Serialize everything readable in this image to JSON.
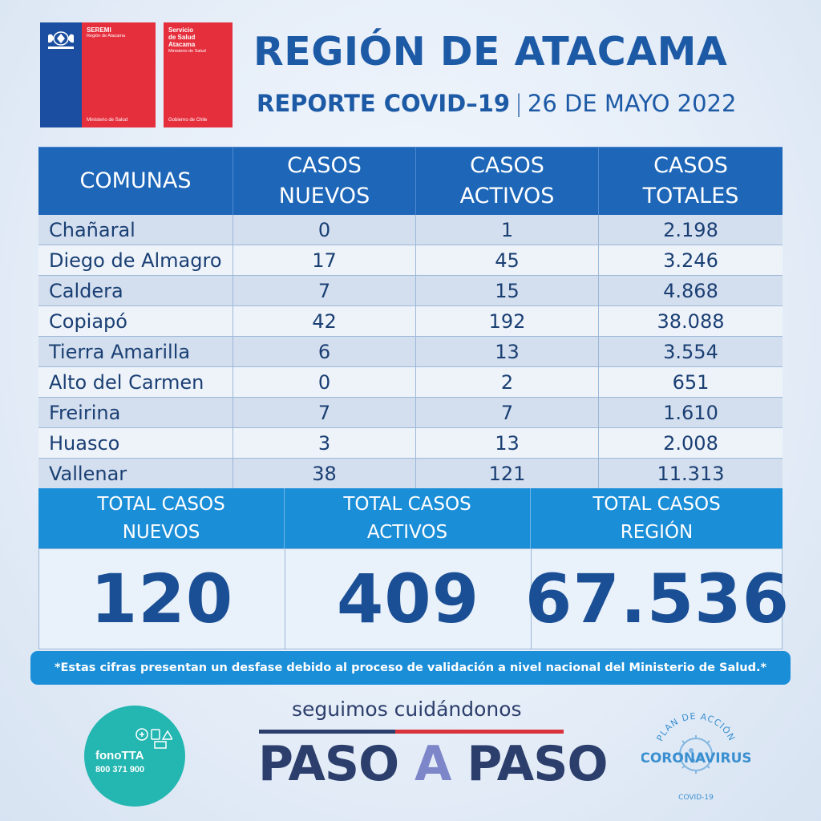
{
  "logos": {
    "seremi": {
      "title": "SEREMI",
      "region": "Región de Atacama",
      "ministry": "Ministerio de Salud"
    },
    "servicio": {
      "title_line1": "Servicio",
      "title_line2": "de Salud",
      "title_line3": "Atacama",
      "ministry": "Ministerio de Salud",
      "footer": "Gobierno de Chile"
    }
  },
  "header": {
    "title": "REGIÓN DE ATACAMA",
    "report": "REPORTE COVID–19",
    "separator": "|",
    "date": "26 DE MAYO 2022"
  },
  "table": {
    "headers": {
      "comunas": "COMUNAS",
      "nuevos_l1": "CASOS",
      "nuevos_l2": "NUEVOS",
      "activos_l1": "CASOS",
      "activos_l2": "ACTIVOS",
      "totales_l1": "CASOS",
      "totales_l2": "TOTALES"
    },
    "rows": [
      {
        "comuna": "Chañaral",
        "nuevos": "0",
        "activos": "1",
        "totales": "2.198"
      },
      {
        "comuna": "Diego de Almagro",
        "nuevos": "17",
        "activos": "45",
        "totales": "3.246"
      },
      {
        "comuna": "Caldera",
        "nuevos": "7",
        "activos": "15",
        "totales": "4.868"
      },
      {
        "comuna": "Copiapó",
        "nuevos": "42",
        "activos": "192",
        "totales": "38.088"
      },
      {
        "comuna": "Tierra Amarilla",
        "nuevos": "6",
        "activos": "13",
        "totales": "3.554"
      },
      {
        "comuna": "Alto del Carmen",
        "nuevos": "0",
        "activos": "2",
        "totales": "651"
      },
      {
        "comuna": "Freirina",
        "nuevos": "7",
        "activos": "7",
        "totales": "1.610"
      },
      {
        "comuna": "Huasco",
        "nuevos": "3",
        "activos": "13",
        "totales": "2.008"
      },
      {
        "comuna": "Vallenar",
        "nuevos": "38",
        "activos": "121",
        "totales": "11.313"
      }
    ]
  },
  "totals": {
    "nuevos_label_l1": "TOTAL CASOS",
    "nuevos_label_l2": "NUEVOS",
    "nuevos_value": "120",
    "activos_label_l1": "TOTAL CASOS",
    "activos_label_l2": "ACTIVOS",
    "activos_value": "409",
    "region_label_l1": "TOTAL CASOS",
    "region_label_l2": "REGIÓN",
    "region_value": "67.536"
  },
  "disclaimer": "*Estas cifras presentan un desfase debido al proceso de validación a nivel nacional del Ministerio de Salud.*",
  "footer": {
    "fono_name": "fonoTTA",
    "fono_number": "800 371 900",
    "slogan": "seguimos cuidándonos",
    "paso1": "PASO",
    "paso_a": "A",
    "paso2": "PASO",
    "plan_top": "PLAN DE ACCIÓN",
    "plan_main": "CORONAVIRUS",
    "plan_sub": "COVID-19"
  },
  "colors": {
    "primary_blue": "#1d5aa6",
    "header_blue": "#1d66b8",
    "light_blue": "#1b8ed8",
    "red": "#e52f3d",
    "teal": "#24b6b0"
  }
}
